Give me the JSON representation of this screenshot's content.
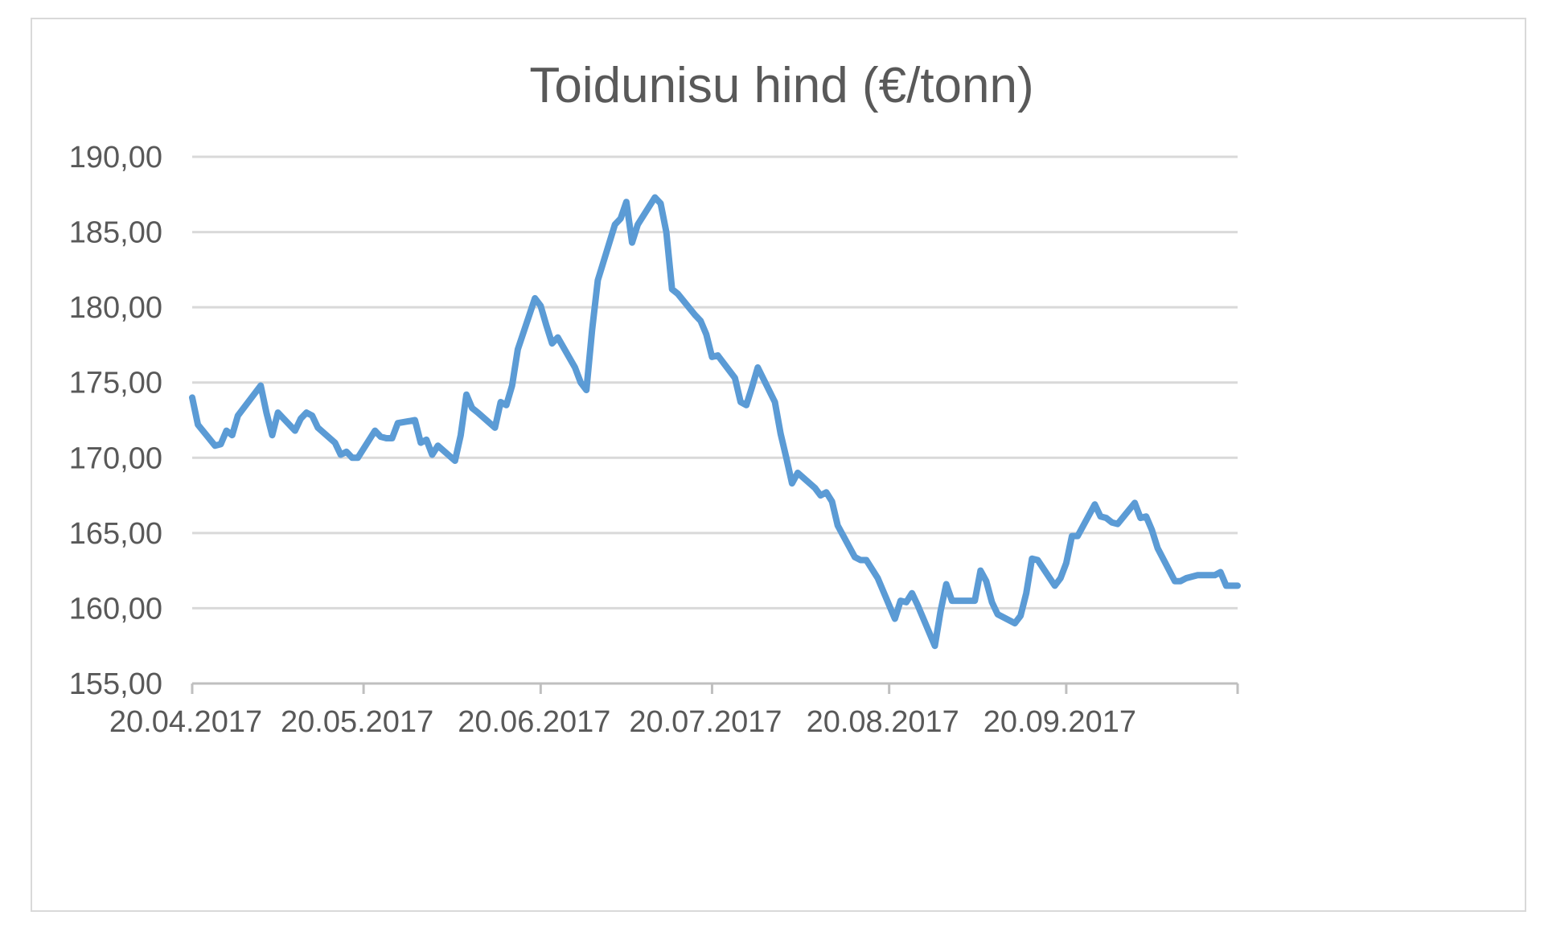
{
  "chart_data": {
    "type": "line",
    "title": "Toidunisu hind (€/tonn)",
    "xlabel": "",
    "ylabel": "",
    "ylim": [
      155,
      190
    ],
    "y_ticks": [
      "155,00",
      "160,00",
      "165,00",
      "170,00",
      "175,00",
      "180,00",
      "185,00",
      "190,00"
    ],
    "x_ticks": [
      "20.04.2017",
      "20.05.2017",
      "20.06.2017",
      "20.07.2017",
      "20.08.2017",
      "20.09.2017"
    ],
    "x_tick_dates": [
      "2017-04-20",
      "2017-05-20",
      "2017-06-20",
      "2017-07-20",
      "2017-08-20",
      "2017-09-20"
    ],
    "xlim": [
      "2017-04-20",
      "2017-10-20"
    ],
    "grid": true,
    "legend": "none",
    "colors": {
      "series": "#5b9bd5",
      "grid": "#d9d9d9",
      "axis": "#bfbfbf",
      "text": "#595959"
    },
    "series": [
      {
        "x": [
          "2017-04-20",
          "2017-04-21",
          "2017-04-24",
          "2017-04-25",
          "2017-04-26",
          "2017-04-27",
          "2017-04-28",
          "2017-05-02",
          "2017-05-03",
          "2017-05-04",
          "2017-05-05",
          "2017-05-08",
          "2017-05-09",
          "2017-05-10",
          "2017-05-11",
          "2017-05-12",
          "2017-05-15",
          "2017-05-16",
          "2017-05-17",
          "2017-05-18",
          "2017-05-19",
          "2017-05-22",
          "2017-05-23",
          "2017-05-24",
          "2017-05-25",
          "2017-05-26",
          "2017-05-29",
          "2017-05-30",
          "2017-05-31",
          "2017-06-01",
          "2017-06-02",
          "2017-06-05",
          "2017-06-06",
          "2017-06-07",
          "2017-06-08",
          "2017-06-09",
          "2017-06-12",
          "2017-06-13",
          "2017-06-14",
          "2017-06-15",
          "2017-06-16",
          "2017-06-19",
          "2017-06-20",
          "2017-06-21",
          "2017-06-22",
          "2017-06-23",
          "2017-06-26",
          "2017-06-27",
          "2017-06-28",
          "2017-06-29",
          "2017-06-30",
          "2017-07-03",
          "2017-07-04",
          "2017-07-05",
          "2017-07-06",
          "2017-07-07",
          "2017-07-10",
          "2017-07-11",
          "2017-07-12",
          "2017-07-13",
          "2017-07-14",
          "2017-07-17",
          "2017-07-18",
          "2017-07-19",
          "2017-07-20",
          "2017-07-21",
          "2017-07-24",
          "2017-07-25",
          "2017-07-26",
          "2017-07-27",
          "2017-07-28",
          "2017-07-31",
          "2017-08-01",
          "2017-08-02",
          "2017-08-03",
          "2017-08-04",
          "2017-08-07",
          "2017-08-08",
          "2017-08-09",
          "2017-08-10",
          "2017-08-11",
          "2017-08-14",
          "2017-08-15",
          "2017-08-16",
          "2017-08-17",
          "2017-08-18",
          "2017-08-21",
          "2017-08-22",
          "2017-08-23",
          "2017-08-24",
          "2017-08-25",
          "2017-08-28",
          "2017-08-29",
          "2017-08-30",
          "2017-08-31",
          "2017-09-01",
          "2017-09-04",
          "2017-09-05",
          "2017-09-06",
          "2017-09-07",
          "2017-09-08",
          "2017-09-11",
          "2017-09-12",
          "2017-09-13",
          "2017-09-14",
          "2017-09-15",
          "2017-09-18",
          "2017-09-19",
          "2017-09-20",
          "2017-09-21",
          "2017-09-22",
          "2017-09-25",
          "2017-09-26",
          "2017-09-27",
          "2017-09-28",
          "2017-09-29",
          "2017-10-02",
          "2017-10-03",
          "2017-10-04",
          "2017-10-05",
          "2017-10-06",
          "2017-10-09",
          "2017-10-10",
          "2017-10-11",
          "2017-10-12",
          "2017-10-13",
          "2017-10-16",
          "2017-10-17",
          "2017-10-18",
          "2017-10-19",
          "2017-10-20"
        ],
        "values": [
          174.0,
          172.2,
          170.8,
          170.9,
          171.8,
          171.5,
          172.8,
          174.8,
          173.0,
          171.5,
          173.0,
          171.8,
          172.6,
          173.0,
          172.8,
          172.0,
          171.0,
          170.2,
          170.4,
          170.0,
          170.0,
          171.8,
          171.4,
          171.3,
          171.3,
          172.3,
          172.5,
          171.0,
          171.2,
          170.2,
          170.8,
          169.8,
          171.5,
          174.2,
          173.3,
          173.0,
          172.0,
          173.7,
          173.5,
          174.8,
          177.2,
          180.6,
          180.1,
          178.8,
          177.6,
          178.0,
          176.0,
          175.0,
          174.5,
          178.5,
          181.8,
          185.5,
          185.9,
          187.0,
          184.3,
          185.5,
          187.3,
          186.9,
          185.0,
          181.2,
          180.9,
          179.5,
          179.1,
          178.2,
          176.7,
          176.8,
          175.3,
          173.7,
          173.5,
          174.7,
          176.0,
          173.7,
          171.6,
          170.0,
          168.3,
          169.0,
          168.0,
          167.5,
          167.7,
          167.1,
          165.5,
          163.4,
          163.2,
          163.2,
          162.6,
          162.0,
          159.3,
          160.5,
          160.4,
          161.0,
          160.2,
          157.5,
          159.8,
          161.6,
          160.5,
          160.5,
          160.5,
          162.5,
          161.8,
          160.4,
          159.6,
          159.0,
          159.5,
          161.0,
          163.3,
          163.2,
          161.5,
          162.0,
          163.0,
          164.8,
          164.8,
          166.9,
          166.1,
          166.0,
          165.7,
          165.6,
          167.0,
          166.0,
          166.1,
          165.2,
          164.0,
          161.8,
          161.8,
          162.0,
          162.1,
          162.2,
          162.2,
          162.4,
          161.5,
          161.5,
          161.5
        ]
      }
    ]
  }
}
